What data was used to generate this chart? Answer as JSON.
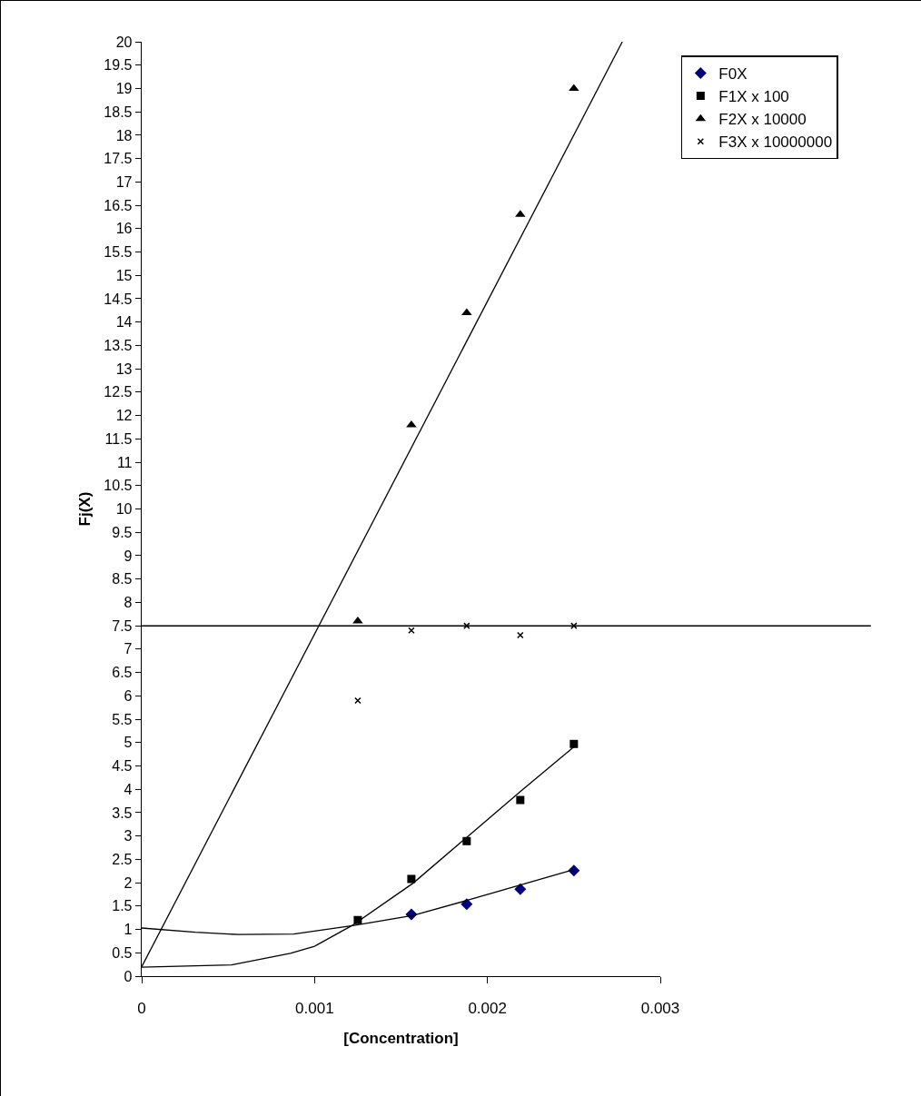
{
  "chart_data": {
    "type": "scatter",
    "xlabel": "[Concentration]",
    "ylabel": "Fj(X)",
    "xlim": [
      0,
      0.003
    ],
    "xticks": [
      0,
      0.001,
      0.002,
      0.003
    ],
    "ylim": [
      0,
      20
    ],
    "yticks": [
      0,
      0.5,
      1,
      1.5,
      2,
      2.5,
      3,
      3.5,
      4,
      4.5,
      5,
      5.5,
      6,
      6.5,
      7,
      7.5,
      8,
      8.5,
      9,
      9.5,
      10,
      10.5,
      11,
      11.5,
      12,
      12.5,
      13,
      13.5,
      14,
      14.5,
      15,
      15.5,
      16,
      16.5,
      17,
      17.5,
      18,
      18.5,
      19,
      19.5,
      20
    ],
    "grid": false,
    "legend": "top right",
    "x": [
      0.00125,
      0.00156,
      0.00188,
      0.00219,
      0.0025
    ],
    "series": [
      {
        "name": "F0X",
        "color": "#000080",
        "marker": "diamond",
        "values": [
          null,
          1.32,
          1.54,
          1.86,
          2.26
        ]
      },
      {
        "name": "F1X x 100",
        "color": "#000000",
        "marker": "square",
        "values": [
          1.2,
          2.08,
          2.89,
          3.77,
          4.97
        ]
      },
      {
        "name": "F2X x 10000",
        "color": "#000000",
        "marker": "triangle",
        "values": [
          7.6,
          11.8,
          14.2,
          16.3,
          19.0
        ]
      },
      {
        "name": "F3X x 10000000",
        "color": "#000000",
        "marker": "cross",
        "values": [
          5.9,
          7.4,
          7.5,
          7.3,
          7.5
        ]
      },
      {
        "type": "line",
        "color": "#000000",
        "marker": "none",
        "x": [
          0,
          0.00031,
          0.00056,
          0.00088,
          0.00122,
          0.00157,
          0.00188,
          0.00219,
          0.0025
        ],
        "values": [
          1.03,
          0.94,
          0.89,
          0.9,
          1.08,
          1.3,
          1.62,
          1.95,
          2.28
        ]
      },
      {
        "type": "line",
        "color": "#000000",
        "marker": "none",
        "x": [
          0,
          0.00052,
          0.00086,
          0.001,
          0.00122,
          0.00157,
          0.00188,
          0.00219,
          0.0025
        ],
        "values": [
          0.19,
          0.24,
          0.49,
          0.64,
          1.09,
          1.99,
          2.97,
          3.95,
          4.91
        ]
      },
      {
        "type": "line",
        "color": "#000000",
        "marker": "none",
        "x": [
          0,
          0.00278
        ],
        "values": [
          0.2,
          20
        ]
      }
    ],
    "ref_lines": [
      {
        "axis": "y",
        "value": 7.5,
        "color": "#000000"
      }
    ]
  }
}
